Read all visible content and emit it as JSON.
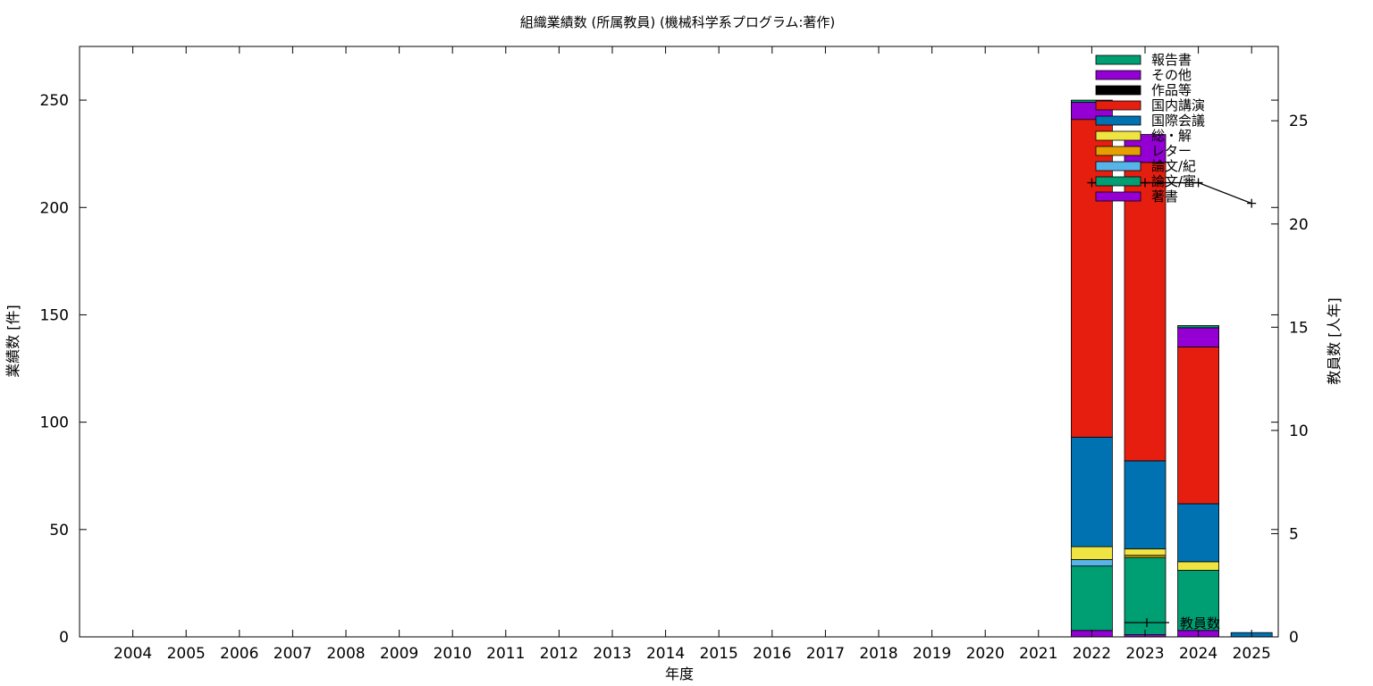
{
  "chart_data": {
    "type": "bar",
    "stacked": true,
    "title": "組織業績数 (所属教員) (機械科学系プログラム:著作)",
    "xlabel": "年度",
    "ylabel": "業績数 [件]",
    "y2label": "教員数 [人年]",
    "ylim": [
      0,
      275
    ],
    "y2lim": [
      0,
      28.6
    ],
    "yticks": [
      0,
      50,
      100,
      150,
      200,
      250
    ],
    "y2ticks": [
      0,
      5,
      10,
      15,
      20,
      25
    ],
    "grid": false,
    "legend_position": "top-right",
    "categories": [
      "2004",
      "2005",
      "2006",
      "2007",
      "2008",
      "2009",
      "2010",
      "2011",
      "2012",
      "2013",
      "2014",
      "2015",
      "2016",
      "2017",
      "2018",
      "2019",
      "2020",
      "2021",
      "2022",
      "2023",
      "2024",
      "2025"
    ],
    "series": [
      {
        "name": "著書",
        "color": "#9400d3",
        "values": [
          0,
          0,
          0,
          0,
          0,
          0,
          0,
          0,
          0,
          0,
          0,
          0,
          0,
          0,
          0,
          0,
          0,
          0,
          3,
          1,
          3,
          0
        ]
      },
      {
        "name": "論文/審",
        "color": "#009e73",
        "values": [
          0,
          0,
          0,
          0,
          0,
          0,
          0,
          0,
          0,
          0,
          0,
          0,
          0,
          0,
          0,
          0,
          0,
          0,
          30,
          36,
          28,
          0
        ]
      },
      {
        "name": "論文/紀",
        "color": "#56b4e9",
        "values": [
          0,
          0,
          0,
          0,
          0,
          0,
          0,
          0,
          0,
          0,
          0,
          0,
          0,
          0,
          0,
          0,
          0,
          0,
          3,
          0,
          0,
          0
        ]
      },
      {
        "name": "レター",
        "color": "#e69f00",
        "values": [
          0,
          0,
          0,
          0,
          0,
          0,
          0,
          0,
          0,
          0,
          0,
          0,
          0,
          0,
          0,
          0,
          0,
          0,
          0,
          1,
          0,
          0
        ]
      },
      {
        "name": "総・解",
        "color": "#f0e442",
        "values": [
          0,
          0,
          0,
          0,
          0,
          0,
          0,
          0,
          0,
          0,
          0,
          0,
          0,
          0,
          0,
          0,
          0,
          0,
          6,
          3,
          4,
          0
        ]
      },
      {
        "name": "国際会議",
        "color": "#0072b2",
        "values": [
          0,
          0,
          0,
          0,
          0,
          0,
          0,
          0,
          0,
          0,
          0,
          0,
          0,
          0,
          0,
          0,
          0,
          0,
          51,
          41,
          27,
          2
        ]
      },
      {
        "name": "国内講演",
        "color": "#e51e10",
        "values": [
          0,
          0,
          0,
          0,
          0,
          0,
          0,
          0,
          0,
          0,
          0,
          0,
          0,
          0,
          0,
          0,
          0,
          0,
          148,
          139,
          73,
          0
        ]
      },
      {
        "name": "作品等",
        "color": "#000000",
        "values": [
          0,
          0,
          0,
          0,
          0,
          0,
          0,
          0,
          0,
          0,
          0,
          0,
          0,
          0,
          0,
          0,
          0,
          0,
          0,
          0,
          0,
          0
        ]
      },
      {
        "name": "その他",
        "color": "#9400d3",
        "values": [
          0,
          0,
          0,
          0,
          0,
          0,
          0,
          0,
          0,
          0,
          0,
          0,
          0,
          0,
          0,
          0,
          0,
          0,
          8,
          13,
          9,
          0
        ]
      },
      {
        "name": "報告書",
        "color": "#009e73",
        "values": [
          0,
          0,
          0,
          0,
          0,
          0,
          0,
          0,
          0,
          0,
          0,
          0,
          0,
          0,
          0,
          0,
          0,
          0,
          1,
          0,
          1,
          0
        ]
      }
    ],
    "line_series": {
      "name": "教員数",
      "axis": "y2",
      "color": "#000000",
      "x": [
        "2022",
        "2023",
        "2024",
        "2025"
      ],
      "values": [
        22,
        22,
        22,
        21
      ]
    }
  }
}
